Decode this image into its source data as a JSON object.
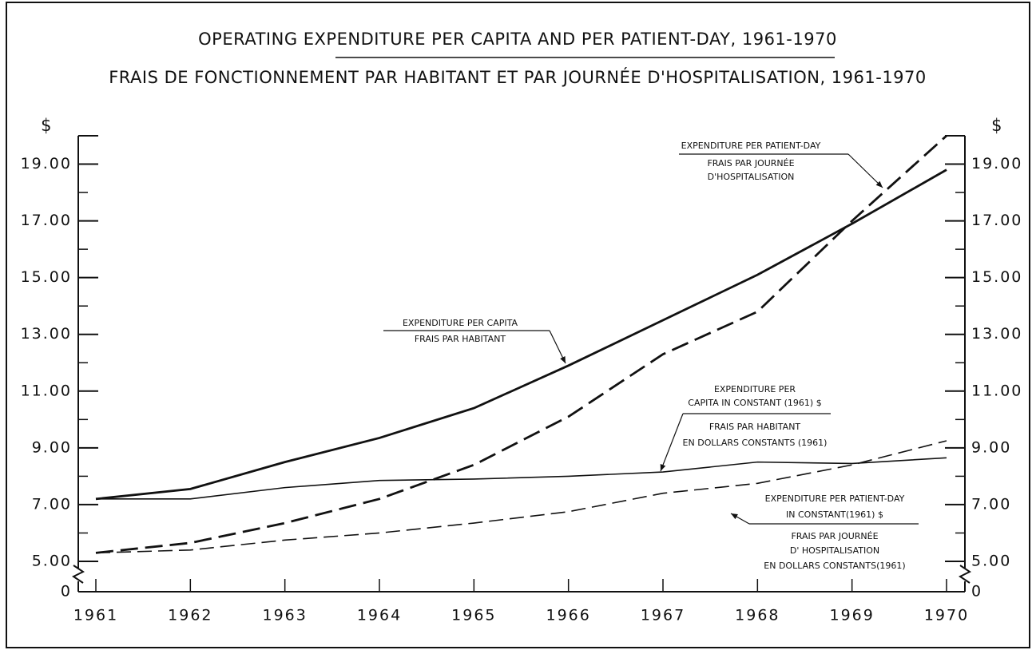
{
  "chart_data": {
    "type": "line",
    "title": "OPERATING EXPENDITURE PER CAPITA AND PER PATIENT-DAY, 1961-1970",
    "subtitle": "FRAIS DE FONCTIONNEMENT PAR HABITANT ET PAR JOURNÉE D'HOSPITALISATION, 1961-1970",
    "y_label": "$",
    "y2_label": "$",
    "categories": [
      "1961",
      "1962",
      "1963",
      "1964",
      "1965",
      "1966",
      "1967",
      "1968",
      "1969",
      "1970"
    ],
    "series": [
      {
        "name": "EXPENDITURE PER CAPITA",
        "style": "solid",
        "weight": "heavy",
        "color": "#111",
        "values": [
          7.2,
          7.55,
          8.5,
          9.35,
          10.4,
          11.9,
          13.5,
          15.1,
          16.9,
          18.8
        ]
      },
      {
        "name": "EXPENDITURE PER PATIENT-DAY",
        "style": "dashed",
        "weight": "heavy",
        "color": "#111",
        "values": [
          5.3,
          5.65,
          6.35,
          7.2,
          8.4,
          10.1,
          12.3,
          13.8,
          17.0,
          20.0
        ]
      },
      {
        "name": "EXPENDITURE PER CAPITA IN CONSTANT (1961) $",
        "style": "solid",
        "weight": "light",
        "color": "#111",
        "values": [
          7.2,
          7.2,
          7.6,
          7.85,
          7.9,
          8.0,
          8.15,
          8.5,
          8.45,
          8.65
        ]
      },
      {
        "name": "EXPENDITURE PER PATIENT-DAY IN CONSTANT(1961) $",
        "style": "dashed",
        "weight": "light",
        "color": "#111",
        "values": [
          5.3,
          5.4,
          5.75,
          6.0,
          6.35,
          6.75,
          7.4,
          7.75,
          8.4,
          9.25
        ]
      }
    ],
    "ylim": [
      5,
      20
    ],
    "axis_break": true,
    "yticks": [
      {
        "value": 0,
        "label": "0"
      },
      {
        "value": 5,
        "label": "5.00"
      },
      {
        "value": 7,
        "label": "7.00"
      },
      {
        "value": 9,
        "label": "9.00"
      },
      {
        "value": 11,
        "label": "11.00"
      },
      {
        "value": 13,
        "label": "13.00"
      },
      {
        "value": 15,
        "label": "15.00"
      },
      {
        "value": 17,
        "label": "17.00"
      },
      {
        "value": 19,
        "label": "19.00"
      }
    ],
    "yminor": [
      6,
      8,
      10,
      12,
      14,
      16,
      18,
      20
    ],
    "annotations": [
      {
        "lines": [
          "EXPENDITURE PER PATIENT-DAY",
          "FRAIS PAR JOURNÉE",
          "D'HOSPITALISATION"
        ]
      },
      {
        "lines": [
          "EXPENDITURE PER CAPITA",
          "FRAIS PAR HABITANT"
        ]
      },
      {
        "lines": [
          "EXPENDITURE PER",
          "CAPITA IN CONSTANT (1961) $",
          "FRAIS PAR HABITANT",
          "EN DOLLARS CONSTANTS (1961)"
        ]
      },
      {
        "lines": [
          "EXPENDITURE PER PATIENT-DAY",
          "IN CONSTANT(1961) $",
          "FRAIS PAR JOURNÉE",
          "D' HOSPITALISATION",
          "EN DOLLARS CONSTANTS(1961)"
        ]
      }
    ]
  }
}
